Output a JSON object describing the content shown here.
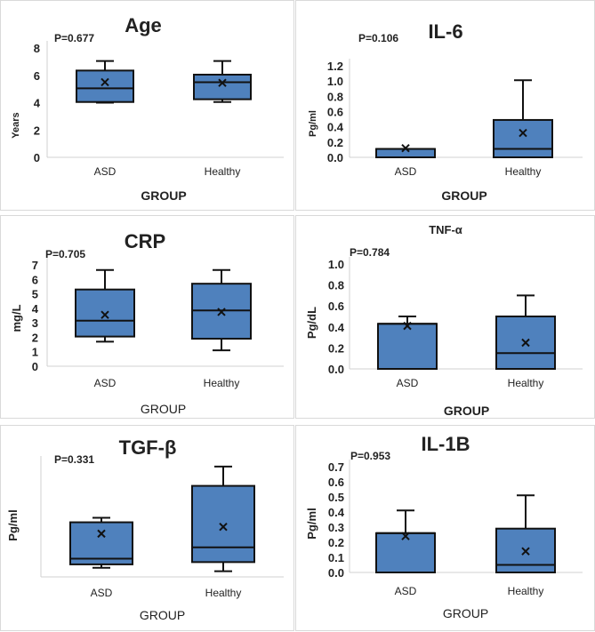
{
  "chart_data": [
    {
      "type": "box",
      "title": "Age",
      "p_value": "P=0.677",
      "xlabel": "GROUP",
      "ylabel": "Years",
      "ylim": [
        0,
        8
      ],
      "yticks": [
        "0",
        "2",
        "4",
        "6",
        "8"
      ],
      "categories": [
        "ASD",
        "Healthy"
      ],
      "boxes": [
        {
          "min": 4.0,
          "q1": 4.05,
          "median": 5.05,
          "q3": 6.35,
          "max": 7.05,
          "mean": 5.5
        },
        {
          "min": 4.05,
          "q1": 4.25,
          "median": 5.5,
          "q3": 6.05,
          "max": 7.05,
          "mean": 5.45
        }
      ]
    },
    {
      "type": "box",
      "title": "IL-6",
      "p_value": "P=0.106",
      "xlabel": "GROUP",
      "ylabel": "Pg/ml",
      "ylim": [
        0,
        1.2
      ],
      "yticks": [
        "0.0",
        "0.2",
        "0.4",
        "0.6",
        "0.8",
        "1.0",
        "1.2"
      ],
      "categories": [
        "ASD",
        "Healthy"
      ],
      "boxes": [
        {
          "min": 0,
          "q1": 0,
          "median": 0.11,
          "q3": 0.11,
          "max": 0.11,
          "mean": 0.12
        },
        {
          "min": 0,
          "q1": 0,
          "median": 0.11,
          "q3": 0.49,
          "max": 1.01,
          "mean": 0.32
        }
      ]
    },
    {
      "type": "box",
      "title": "CRP",
      "p_value": "P=0.705",
      "xlabel": "GROUP",
      "ylabel": "mg/L",
      "ylim": [
        0,
        7
      ],
      "yticks": [
        "0",
        "1",
        "2",
        "3",
        "4",
        "5",
        "6",
        "7"
      ],
      "categories": [
        "ASD",
        "Healthy"
      ],
      "boxes": [
        {
          "min": 1.7,
          "q1": 2.05,
          "median": 3.15,
          "q3": 5.3,
          "max": 6.65,
          "mean": 3.55
        },
        {
          "min": 1.1,
          "q1": 1.9,
          "median": 3.85,
          "q3": 5.7,
          "max": 6.65,
          "mean": 3.75
        }
      ]
    },
    {
      "type": "box",
      "title": "TNF-α",
      "p_value": "P=0.784",
      "xlabel": "GROUP",
      "ylabel": "Pg/dL",
      "ylim": [
        0,
        1.0
      ],
      "yticks": [
        "0.0",
        "0.2",
        "0.4",
        "0.6",
        "0.8",
        "1.0"
      ],
      "categories": [
        "ASD",
        "Healthy"
      ],
      "boxes": [
        {
          "min": 0,
          "q1": 0,
          "median": 0.43,
          "q3": 0.43,
          "max": 0.5,
          "mean": 0.41
        },
        {
          "min": 0,
          "q1": 0,
          "median": 0.15,
          "q3": 0.5,
          "max": 0.7,
          "mean": 0.25
        }
      ]
    },
    {
      "type": "box",
      "title": "TGF-β",
      "p_value": "P=0.331",
      "xlabel": "GROUP",
      "ylabel": "Pg/ml",
      "ylim": [
        0,
        1
      ],
      "yticks": [],
      "categories": [
        "ASD",
        "Healthy"
      ],
      "boxes": [
        {
          "min": 0.08,
          "q1": 0.11,
          "median": 0.16,
          "q3": 0.48,
          "max": 0.52,
          "mean": 0.38
        },
        {
          "min": 0.05,
          "q1": 0.13,
          "median": 0.26,
          "q3": 0.8,
          "max": 0.97,
          "mean": 0.44
        }
      ]
    },
    {
      "type": "box",
      "title": "IL-1B",
      "p_value": "P=0.953",
      "xlabel": "GROUP",
      "ylabel": "Pg/ml",
      "ylim": [
        0,
        0.7
      ],
      "yticks": [
        "0.0",
        "0.1",
        "0.2",
        "0.3",
        "0.4",
        "0.5",
        "0.6",
        "0.7"
      ],
      "categories": [
        "ASD",
        "Healthy"
      ],
      "boxes": [
        {
          "min": 0,
          "q1": 0,
          "median": 0.26,
          "q3": 0.26,
          "max": 0.41,
          "mean": 0.24
        },
        {
          "min": 0,
          "q1": 0,
          "median": 0.05,
          "q3": 0.29,
          "max": 0.51,
          "mean": 0.14
        }
      ]
    }
  ],
  "colors": {
    "box_fill": "#4f81bd",
    "box_stroke": "#111111",
    "axis": "#d0d0d0"
  }
}
